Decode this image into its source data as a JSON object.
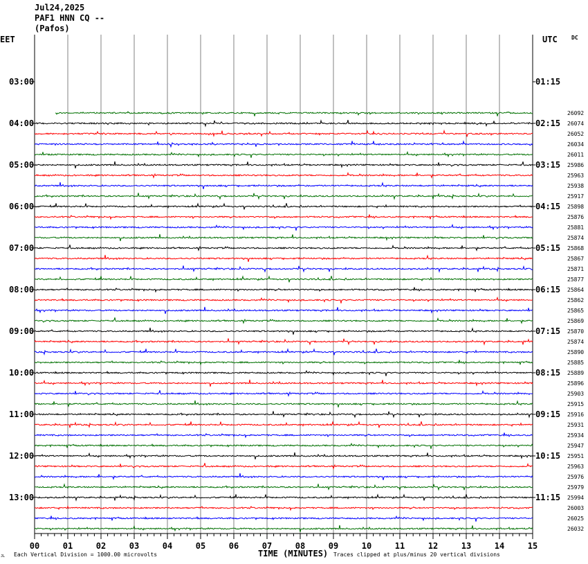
{
  "header": {
    "date": "Jul24,2025",
    "station": "PAF1 HNN CQ --",
    "location": "(Pafos)"
  },
  "axis_labels": {
    "left_zone": "EET",
    "right_zone": "UTC",
    "dc": "DC",
    "x_title": "TIME (MINUTES)",
    "scale_note": "Each Vertical Division = 1000.00 microvolts",
    "clip_note": "Traces clipped at plus/minus 20 vertical divisions",
    "corner_mark": "JL"
  },
  "colors": {
    "cycle": [
      "#000000",
      "#ff0000",
      "#0000ff",
      "#007000"
    ],
    "grid": "#808080",
    "axis": "#000000"
  },
  "chart_data": {
    "type": "line",
    "x_ticks": [
      "00",
      "01",
      "02",
      "03",
      "04",
      "05",
      "06",
      "07",
      "08",
      "09",
      "10",
      "11",
      "12",
      "13",
      "14",
      "15"
    ],
    "xlim": [
      0,
      15
    ],
    "left_times": [
      "03:00",
      "04:00",
      "05:00",
      "06:00",
      "07:00",
      "08:00",
      "09:00",
      "10:00",
      "11:00",
      "12:00",
      "13:00"
    ],
    "right_times": [
      "01:15",
      "02:15",
      "03:15",
      "04:15",
      "05:15",
      "06:15",
      "07:15",
      "08:15",
      "09:15",
      "10:15",
      "11:15"
    ],
    "traces": [
      {
        "label": "26092",
        "color": "#007000"
      },
      {
        "label": "26074",
        "color": "#000000"
      },
      {
        "label": "26052",
        "color": "#ff0000"
      },
      {
        "label": "26034",
        "color": "#0000ff"
      },
      {
        "label": "26011",
        "color": "#007000"
      },
      {
        "label": "25986",
        "color": "#000000"
      },
      {
        "label": "25963",
        "color": "#ff0000"
      },
      {
        "label": "25938",
        "color": "#0000ff"
      },
      {
        "label": "25917",
        "color": "#007000"
      },
      {
        "label": "25898",
        "color": "#000000"
      },
      {
        "label": "25876",
        "color": "#ff0000"
      },
      {
        "label": "25881",
        "color": "#0000ff"
      },
      {
        "label": "25874",
        "color": "#007000"
      },
      {
        "label": "25868",
        "color": "#000000"
      },
      {
        "label": "25867",
        "color": "#ff0000"
      },
      {
        "label": "25871",
        "color": "#0000ff"
      },
      {
        "label": "25877",
        "color": "#007000"
      },
      {
        "label": "25864",
        "color": "#000000"
      },
      {
        "label": "25862",
        "color": "#ff0000"
      },
      {
        "label": "25865",
        "color": "#0000ff"
      },
      {
        "label": "25869",
        "color": "#007000"
      },
      {
        "label": "25870",
        "color": "#000000"
      },
      {
        "label": "25874",
        "color": "#ff0000"
      },
      {
        "label": "25890",
        "color": "#0000ff"
      },
      {
        "label": "25885",
        "color": "#007000"
      },
      {
        "label": "25889",
        "color": "#000000"
      },
      {
        "label": "25896",
        "color": "#ff0000"
      },
      {
        "label": "25903",
        "color": "#0000ff"
      },
      {
        "label": "25915",
        "color": "#007000"
      },
      {
        "label": "25916",
        "color": "#000000"
      },
      {
        "label": "25931",
        "color": "#ff0000"
      },
      {
        "label": "25934",
        "color": "#0000ff"
      },
      {
        "label": "25947",
        "color": "#007000"
      },
      {
        "label": "25951",
        "color": "#000000"
      },
      {
        "label": "25963",
        "color": "#ff0000"
      },
      {
        "label": "25976",
        "color": "#0000ff"
      },
      {
        "label": "25979",
        "color": "#007000"
      },
      {
        "label": "25994",
        "color": "#000000"
      },
      {
        "label": "26003",
        "color": "#ff0000"
      },
      {
        "label": "26025",
        "color": "#0000ff"
      },
      {
        "label": "26032",
        "color": "#007000"
      }
    ]
  }
}
